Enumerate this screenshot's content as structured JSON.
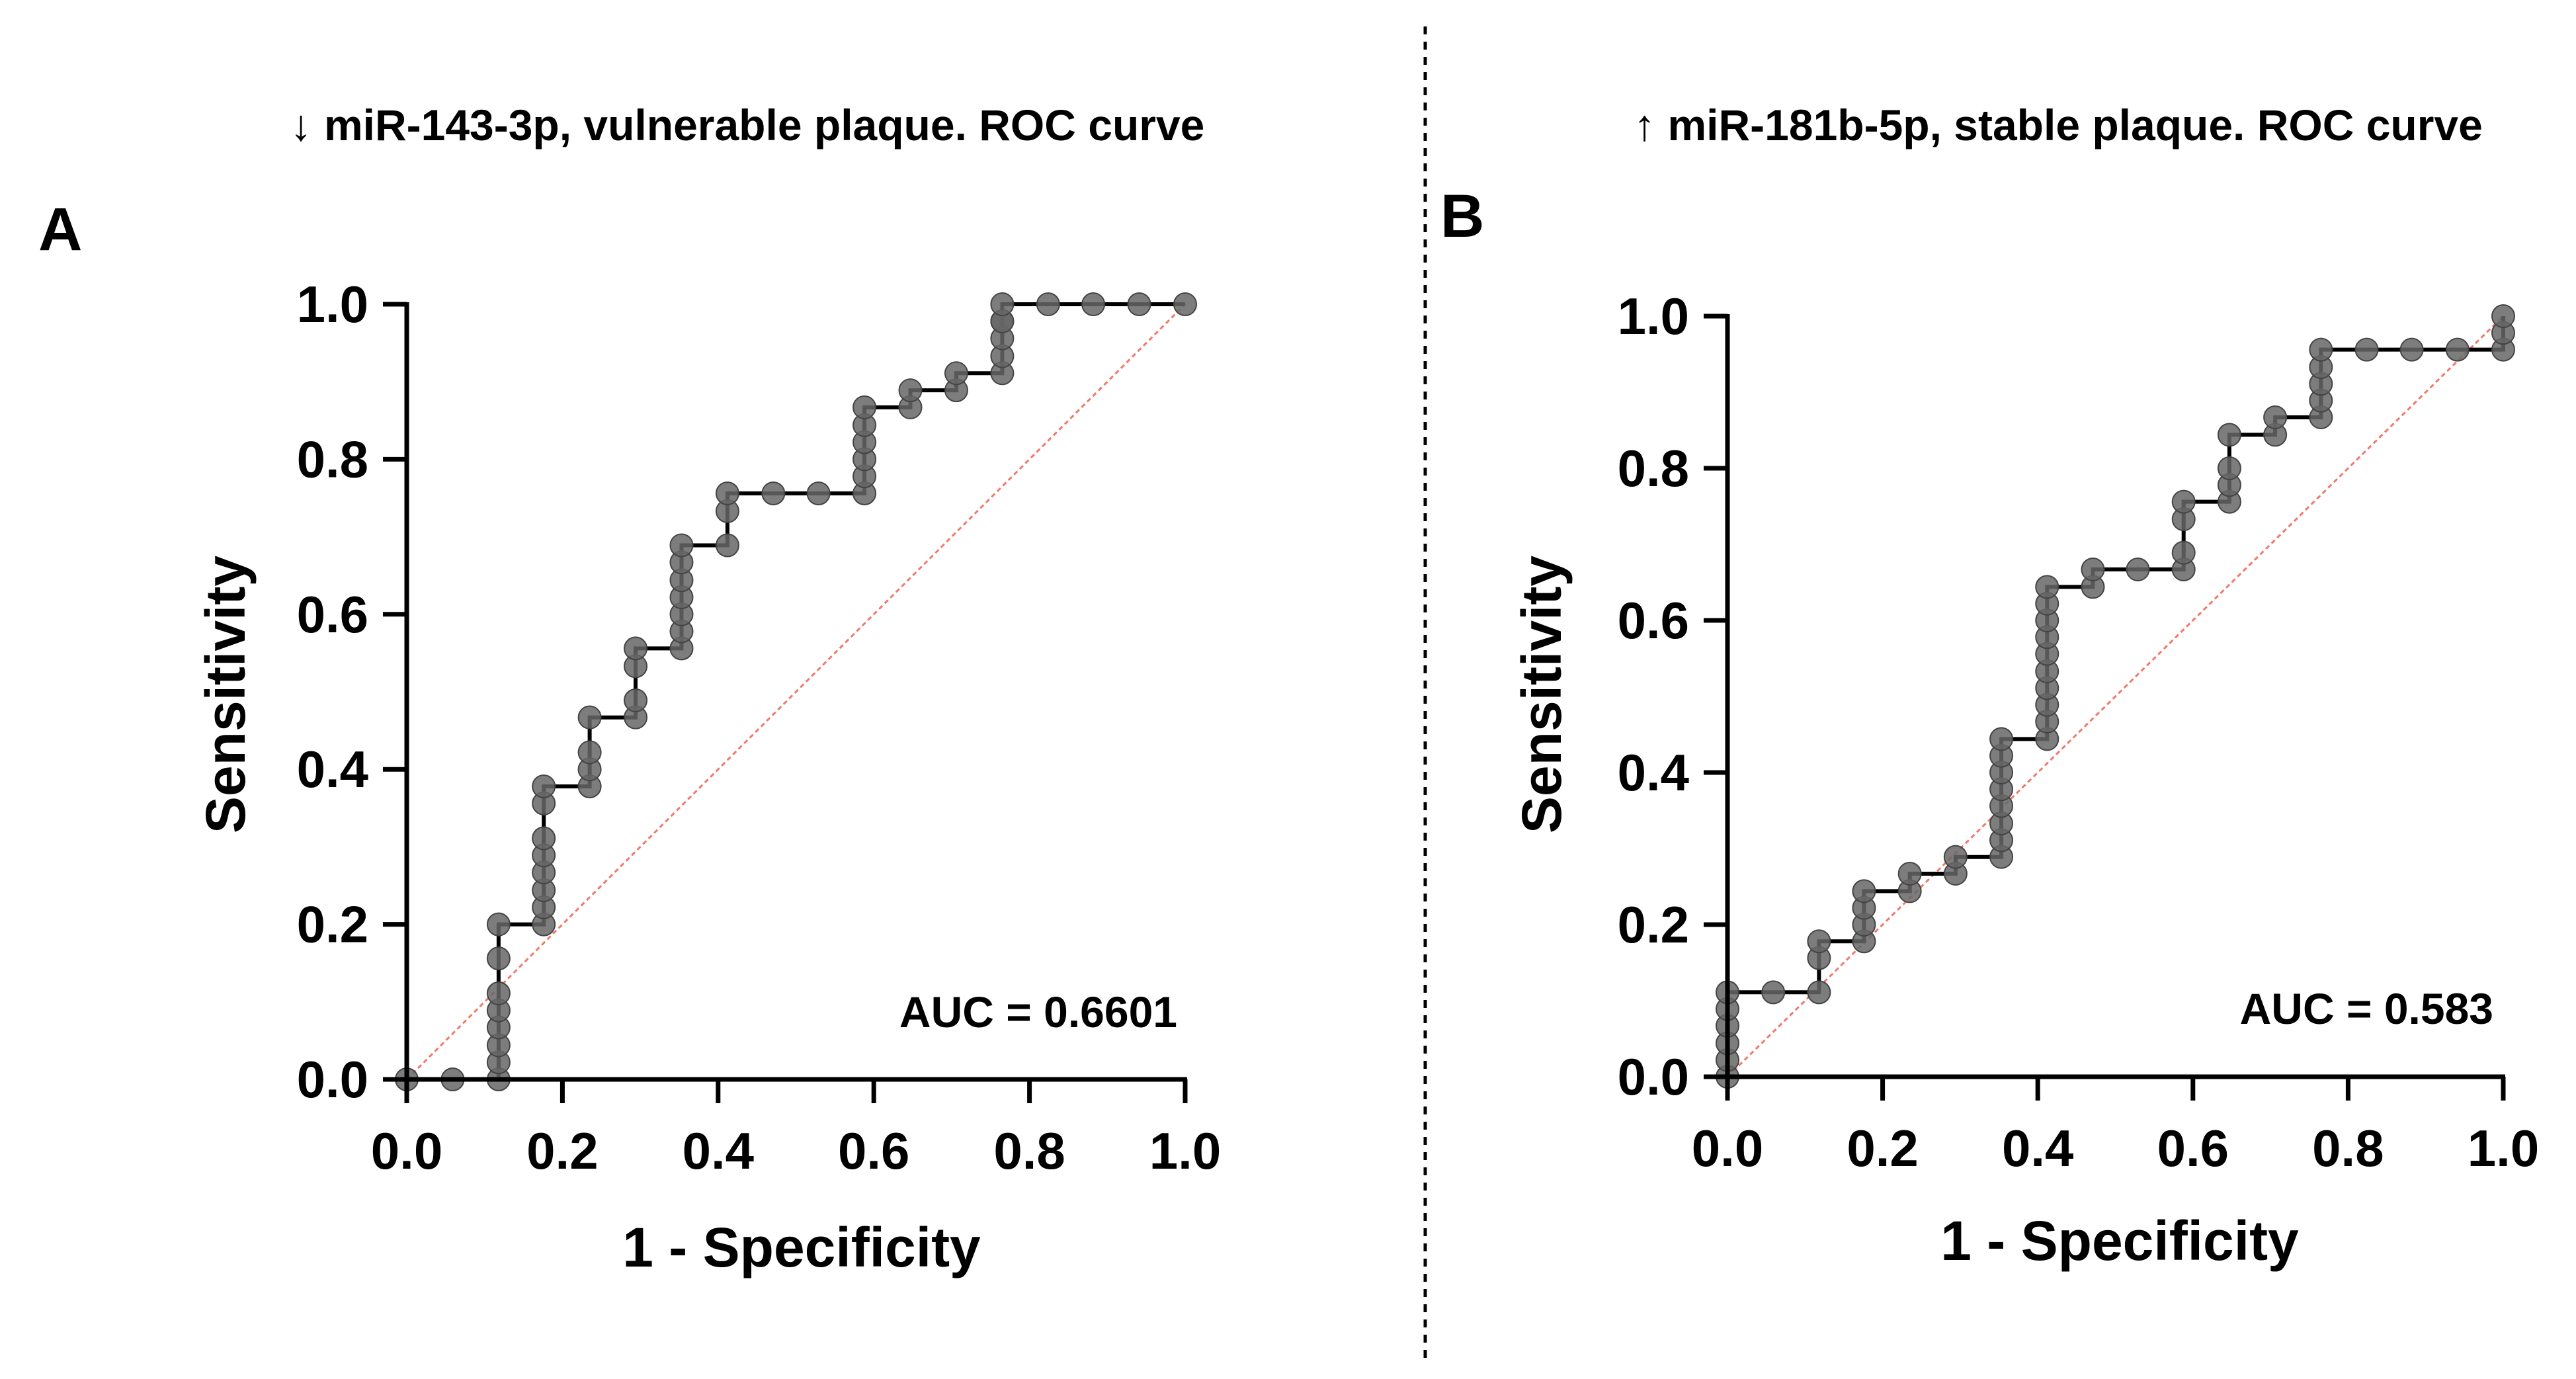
{
  "divider_color": "#000000",
  "chart_data": [
    {
      "type": "line",
      "panel_label": "A",
      "title_arrow": "↓",
      "title": "miR-143-3p, vulnerable plaque. ROC curve",
      "xlabel": "1 - Specificity",
      "ylabel": "Sensitivity",
      "xlim": [
        0,
        1
      ],
      "ylim": [
        0,
        1
      ],
      "xticks": [
        "0.0",
        "0.2",
        "0.4",
        "0.6",
        "0.8",
        "1.0"
      ],
      "yticks": [
        "0.0",
        "0.2",
        "0.4",
        "0.6",
        "0.8",
        "1.0"
      ],
      "annotation": "AUC = 0.6601",
      "auc": 0.6601,
      "series": [
        {
          "name": "ROC",
          "color": "#000000",
          "marker_color": "#666666",
          "x": [
            0,
            0.059,
            0.118,
            0.118,
            0.118,
            0.118,
            0.118,
            0.118,
            0.118,
            0.118,
            0.176,
            0.176,
            0.176,
            0.176,
            0.176,
            0.176,
            0.176,
            0.176,
            0.235,
            0.235,
            0.235,
            0.235,
            0.294,
            0.294,
            0.294,
            0.294,
            0.353,
            0.353,
            0.353,
            0.353,
            0.353,
            0.353,
            0.353,
            0.412,
            0.412,
            0.412,
            0.471,
            0.529,
            0.588,
            0.588,
            0.588,
            0.588,
            0.588,
            0.588,
            0.647,
            0.647,
            0.706,
            0.706,
            0.765,
            0.765,
            0.765,
            0.765,
            0.765,
            0.765,
            0.824,
            0.882,
            0.941,
            1.0
          ],
          "y": [
            0,
            0,
            0,
            0.022,
            0.044,
            0.067,
            0.089,
            0.111,
            0.156,
            0.2,
            0.2,
            0.222,
            0.244,
            0.267,
            0.289,
            0.311,
            0.356,
            0.378,
            0.378,
            0.4,
            0.422,
            0.467,
            0.467,
            0.489,
            0.533,
            0.556,
            0.556,
            0.578,
            0.6,
            0.622,
            0.644,
            0.667,
            0.689,
            0.689,
            0.733,
            0.756,
            0.756,
            0.756,
            0.756,
            0.778,
            0.8,
            0.822,
            0.844,
            0.867,
            0.867,
            0.889,
            0.889,
            0.911,
            0.911,
            0.933,
            0.956,
            0.978,
            0.978,
            1.0,
            1.0,
            1.0,
            1.0,
            1.0
          ]
        },
        {
          "name": "reference",
          "color": "#f07a6a",
          "x": [
            0,
            1
          ],
          "y": [
            0,
            1
          ]
        }
      ]
    },
    {
      "type": "line",
      "panel_label": "B",
      "title_arrow": "↑",
      "title": "miR-181b-5p, stable plaque. ROC curve",
      "xlabel": "1 - Specificity",
      "ylabel": "Sensitivity",
      "xlim": [
        0,
        1
      ],
      "ylim": [
        0,
        1
      ],
      "xticks": [
        "0.0",
        "0.2",
        "0.4",
        "0.6",
        "0.8",
        "1.0"
      ],
      "yticks": [
        "0.0",
        "0.2",
        "0.4",
        "0.6",
        "0.8",
        "1.0"
      ],
      "annotation": "AUC = 0.583",
      "auc": 0.583,
      "series": [
        {
          "name": "ROC",
          "color": "#000000",
          "marker_color": "#666666",
          "x": [
            0,
            0,
            0,
            0,
            0,
            0,
            0.059,
            0.118,
            0.118,
            0.118,
            0.176,
            0.176,
            0.176,
            0.176,
            0.235,
            0.235,
            0.294,
            0.294,
            0.353,
            0.353,
            0.353,
            0.353,
            0.353,
            0.353,
            0.353,
            0.353,
            0.412,
            0.412,
            0.412,
            0.412,
            0.412,
            0.412,
            0.412,
            0.412,
            0.412,
            0.412,
            0.471,
            0.471,
            0.529,
            0.588,
            0.588,
            0.588,
            0.588,
            0.647,
            0.647,
            0.647,
            0.647,
            0.706,
            0.706,
            0.765,
            0.765,
            0.765,
            0.765,
            0.765,
            0.824,
            0.882,
            0.941,
            1.0,
            1.0,
            1.0
          ],
          "y": [
            0,
            0.022,
            0.044,
            0.067,
            0.089,
            0.111,
            0.111,
            0.111,
            0.156,
            0.178,
            0.178,
            0.2,
            0.222,
            0.244,
            0.244,
            0.267,
            0.267,
            0.289,
            0.289,
            0.311,
            0.333,
            0.356,
            0.378,
            0.4,
            0.422,
            0.444,
            0.444,
            0.467,
            0.489,
            0.511,
            0.533,
            0.556,
            0.578,
            0.6,
            0.622,
            0.644,
            0.644,
            0.667,
            0.667,
            0.667,
            0.689,
            0.733,
            0.756,
            0.756,
            0.778,
            0.8,
            0.844,
            0.844,
            0.867,
            0.867,
            0.889,
            0.911,
            0.933,
            0.956,
            0.956,
            0.956,
            0.956,
            0.956,
            0.978,
            1.0
          ]
        },
        {
          "name": "reference",
          "color": "#f07a6a",
          "x": [
            0,
            1
          ],
          "y": [
            0,
            1
          ]
        }
      ]
    }
  ]
}
